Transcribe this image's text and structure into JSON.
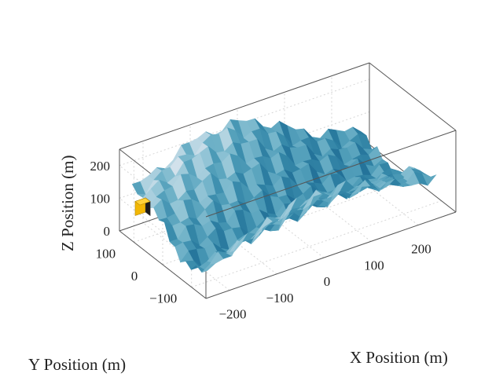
{
  "chart_data": {
    "type": "surface",
    "title": "",
    "xlabel": "X Position (m)",
    "ylabel": "Y Position (m)",
    "zlabel": "Z Position (m)",
    "xlim": [
      -250,
      280
    ],
    "ylim": [
      -150,
      150
    ],
    "zlim": [
      0,
      250
    ],
    "x_ticks": [
      -200,
      -100,
      0,
      100,
      200
    ],
    "y_ticks": [
      -100,
      0,
      100
    ],
    "z_ticks": [
      0,
      100,
      200
    ],
    "x_tick_labels": [
      "−200",
      "−100",
      "0",
      "100",
      "200"
    ],
    "y_tick_labels": [
      "−100",
      "0",
      "100"
    ],
    "z_tick_labels": [
      "0",
      "100",
      "200"
    ],
    "grid": true,
    "surface_description": "terrain valley between two ridges",
    "colors": {
      "surface_dark": "#1a4f80",
      "surface_mid": "#3f84bd",
      "surface_light": "#c9dbe9",
      "marker": "#f2b705"
    },
    "marker": {
      "x": -235,
      "y": 120,
      "z": 60
    }
  }
}
